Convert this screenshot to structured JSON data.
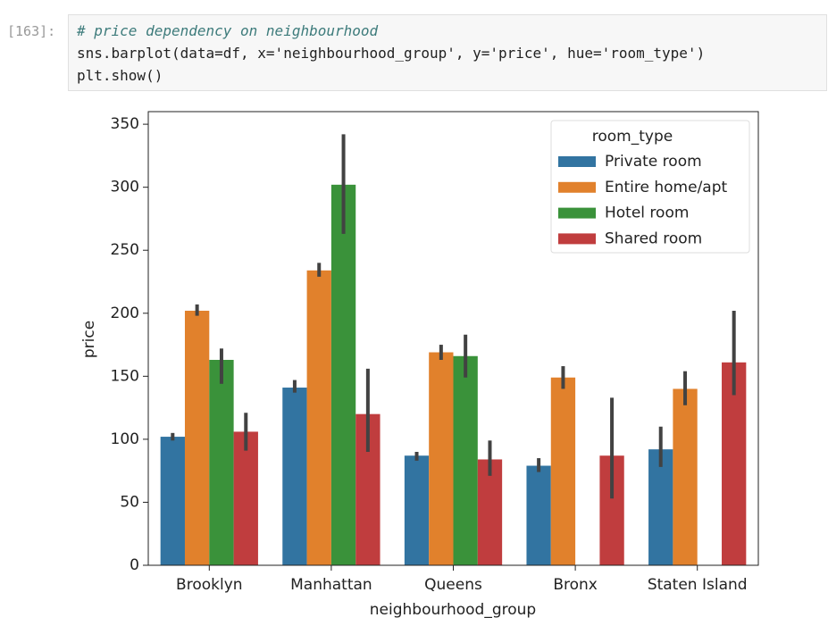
{
  "cell": {
    "prompt": "[163]:",
    "code": [
      "# price dependency on neighbourhood",
      "sns.barplot(data=df, x='neighbourhood_group', y='price', hue='room_type')",
      "plt.show()"
    ]
  },
  "chart_data": {
    "type": "bar",
    "xlabel": "neighbourhood_group",
    "ylabel": "price",
    "categories": [
      "Brooklyn",
      "Manhattan",
      "Queens",
      "Bronx",
      "Staten Island"
    ],
    "legend_title": "room_type",
    "legend": "upper right",
    "series": [
      {
        "name": "Private room",
        "color": "#3274a1",
        "values": [
          102,
          141,
          87,
          79,
          92
        ],
        "ci_low": [
          99,
          137,
          83,
          74,
          78
        ],
        "ci_high": [
          105,
          147,
          90,
          85,
          110
        ]
      },
      {
        "name": "Entire home/apt",
        "color": "#e1812c",
        "values": [
          202,
          234,
          169,
          149,
          140
        ],
        "ci_low": [
          198,
          229,
          163,
          140,
          127
        ],
        "ci_high": [
          207,
          240,
          175,
          158,
          154
        ]
      },
      {
        "name": "Hotel room",
        "color": "#3a923a",
        "values": [
          163,
          302,
          166,
          null,
          null
        ],
        "ci_low": [
          144,
          263,
          149,
          null,
          null
        ],
        "ci_high": [
          172,
          342,
          183,
          null,
          null
        ]
      },
      {
        "name": "Shared room",
        "color": "#c03d3e",
        "values": [
          106,
          120,
          84,
          87,
          161
        ],
        "ci_low": [
          91,
          90,
          71,
          53,
          135
        ],
        "ci_high": [
          121,
          156,
          99,
          133,
          202
        ]
      }
    ],
    "ylim": [
      0,
      360
    ],
    "yticks": [
      0,
      50,
      100,
      150,
      200,
      250,
      300,
      350
    ]
  }
}
